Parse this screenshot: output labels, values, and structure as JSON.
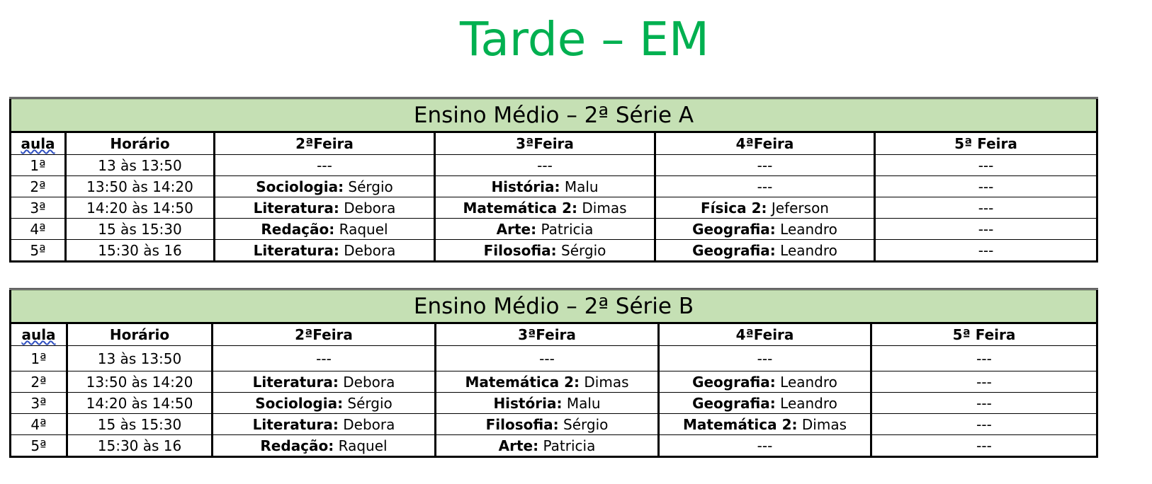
{
  "title": "Tarde – EM",
  "tables": [
    {
      "caption": "Ensino Médio – 2ª Série A",
      "headers": [
        "aula",
        "Horário",
        "2ªFeira",
        "3ªFeira",
        "4ªFeira",
        "5ª Feira"
      ],
      "rows": [
        {
          "aula": "1ª",
          "horario": "13 às 13:50",
          "cells": [
            {
              "s": "",
              "t": "---"
            },
            {
              "s": "",
              "t": "---"
            },
            {
              "s": "",
              "t": "---"
            },
            {
              "s": "",
              "t": "---"
            }
          ]
        },
        {
          "aula": "2ª",
          "horario": "13:50 às 14:20",
          "cells": [
            {
              "s": "Sociologia:",
              "t": "Sérgio"
            },
            {
              "s": "História:",
              "t": "Malu"
            },
            {
              "s": "",
              "t": "---"
            },
            {
              "s": "",
              "t": "---"
            }
          ]
        },
        {
          "aula": "3ª",
          "horario": "14:20 às 14:50",
          "cells": [
            {
              "s": "Literatura:",
              "t": "Debora"
            },
            {
              "s": "Matemática 2:",
              "t": "Dimas"
            },
            {
              "s": "Física 2:",
              "t": "Jeferson"
            },
            {
              "s": "",
              "t": "---"
            }
          ]
        },
        {
          "aula": "4ª",
          "horario": "15 às 15:30",
          "cells": [
            {
              "s": "Redação:",
              "t": "Raquel"
            },
            {
              "s": "Arte:",
              "t": "Patricia"
            },
            {
              "s": "Geografia:",
              "t": "Leandro"
            },
            {
              "s": "",
              "t": "---"
            }
          ]
        },
        {
          "aula": "5ª",
          "horario": "15:30 às 16",
          "cells": [
            {
              "s": "Literatura:",
              "t": "Debora"
            },
            {
              "s": "Filosofia:",
              "t": "Sérgio"
            },
            {
              "s": "Geografia:",
              "t": "Leandro"
            },
            {
              "s": "",
              "t": "---"
            }
          ]
        }
      ]
    },
    {
      "caption": "Ensino Médio – 2ª Série B",
      "headers": [
        "aula",
        "Horário",
        "2ªFeira",
        "3ªFeira",
        "4ªFeira",
        "5ª Feira"
      ],
      "rows": [
        {
          "aula": "1ª",
          "horario": "13 às 13:50",
          "cells": [
            {
              "s": "",
              "t": "---"
            },
            {
              "s": "",
              "t": "---"
            },
            {
              "s": "",
              "t": "---"
            },
            {
              "s": "",
              "t": "---"
            }
          ]
        },
        {
          "aula": "2ª",
          "horario": "13:50 às 14:20",
          "cells": [
            {
              "s": "Literatura:",
              "t": "Debora"
            },
            {
              "s": "Matemática 2:",
              "t": "Dimas"
            },
            {
              "s": "Geografia:",
              "t": "Leandro"
            },
            {
              "s": "",
              "t": "---"
            }
          ]
        },
        {
          "aula": "3ª",
          "horario": "14:20 às 14:50",
          "cells": [
            {
              "s": "Sociologia:",
              "t": "Sérgio"
            },
            {
              "s": "História:",
              "t": "Malu"
            },
            {
              "s": "Geografia:",
              "t": "Leandro"
            },
            {
              "s": "",
              "t": "---"
            }
          ]
        },
        {
          "aula": "4ª",
          "horario": "15 às 15:30",
          "cells": [
            {
              "s": "Literatura:",
              "t": "Debora"
            },
            {
              "s": "Filosofia:",
              "t": "Sérgio"
            },
            {
              "s": "Matemática 2:",
              "t": "Dimas"
            },
            {
              "s": "",
              "t": "---"
            }
          ]
        },
        {
          "aula": "5ª",
          "horario": "15:30 às 16",
          "cells": [
            {
              "s": "Redação:",
              "t": "Raquel"
            },
            {
              "s": "Arte:",
              "t": "Patricia"
            },
            {
              "s": "",
              "t": "---"
            },
            {
              "s": "",
              "t": "---"
            }
          ]
        }
      ]
    }
  ]
}
